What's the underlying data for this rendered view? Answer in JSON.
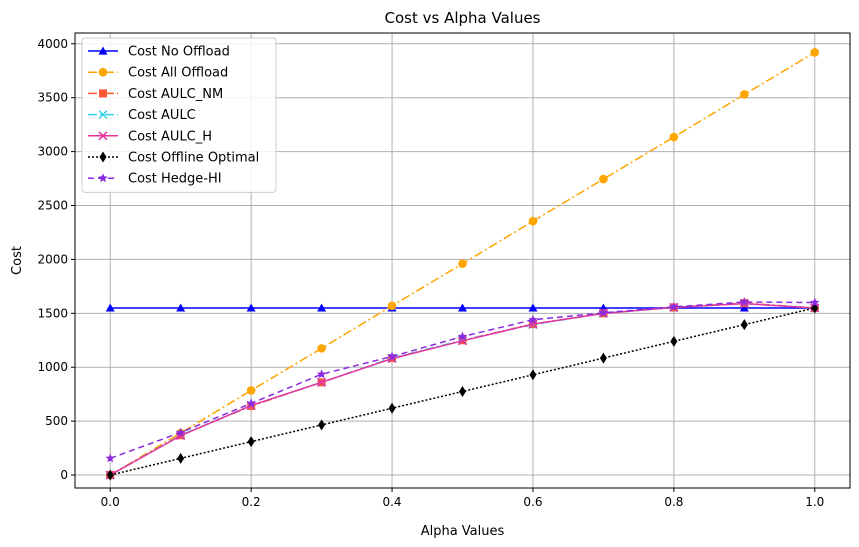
{
  "chart_data": {
    "type": "line",
    "title": "Cost vs Alpha Values",
    "xlabel": "Alpha Values",
    "ylabel": "Cost",
    "xlim": [
      -0.05,
      1.05
    ],
    "ylim": [
      -120,
      4100
    ],
    "xticks": [
      0.0,
      0.2,
      0.4,
      0.6,
      0.8,
      1.0
    ],
    "xtick_labels": [
      "0.0",
      "0.2",
      "0.4",
      "0.6",
      "0.8",
      "1.0"
    ],
    "yticks": [
      0,
      500,
      1000,
      1500,
      2000,
      2500,
      3000,
      3500,
      4000
    ],
    "ytick_labels": [
      "0",
      "500",
      "1000",
      "1500",
      "2000",
      "2500",
      "3000",
      "3500",
      "4000"
    ],
    "grid": true,
    "legend_position": "top-left",
    "x": [
      0.0,
      0.1,
      0.2,
      0.3,
      0.4,
      0.5,
      0.6,
      0.7,
      0.8,
      0.9,
      1.0
    ],
    "series": [
      {
        "name": "Cost No Offload",
        "color": "#0000ff",
        "dash": "",
        "marker": "triangle",
        "values": [
          1550,
          1550,
          1550,
          1550,
          1550,
          1550,
          1550,
          1550,
          1550,
          1550,
          1550
        ]
      },
      {
        "name": "Cost All Offload",
        "color": "#ffa500",
        "dash": "9,3,2,3",
        "marker": "circle",
        "values": [
          0,
          390,
          785,
          1175,
          1570,
          1960,
          2355,
          2745,
          3135,
          3530,
          3920
        ]
      },
      {
        "name": "Cost AULC_NM",
        "color": "#ff5733",
        "dash": "9,3,2,3",
        "marker": "square",
        "values": [
          0,
          370,
          640,
          860,
          1085,
          1250,
          1400,
          1500,
          1555,
          1595,
          1550
        ]
      },
      {
        "name": "Cost AULC",
        "color": "#33d1e6",
        "dash": "9,3,2,3",
        "marker": "x",
        "values": [
          0,
          370,
          645,
          860,
          1085,
          1250,
          1395,
          1500,
          1555,
          1590,
          1550
        ]
      },
      {
        "name": "Cost AULC_H",
        "color": "#e6339e",
        "dash": "",
        "marker": "x",
        "values": [
          0,
          365,
          645,
          860,
          1080,
          1245,
          1400,
          1500,
          1555,
          1590,
          1550
        ]
      },
      {
        "name": "Cost Offline Optimal",
        "color": "#000000",
        "dash": "2,2",
        "marker": "diamond",
        "values": [
          0,
          155,
          310,
          465,
          620,
          775,
          930,
          1085,
          1240,
          1395,
          1550
        ]
      },
      {
        "name": "Cost Hedge-HI",
        "color": "#8a2be2",
        "dash": "6,4",
        "marker": "star",
        "values": [
          155,
          395,
          665,
          935,
          1100,
          1285,
          1440,
          1505,
          1560,
          1605,
          1600
        ]
      }
    ]
  }
}
